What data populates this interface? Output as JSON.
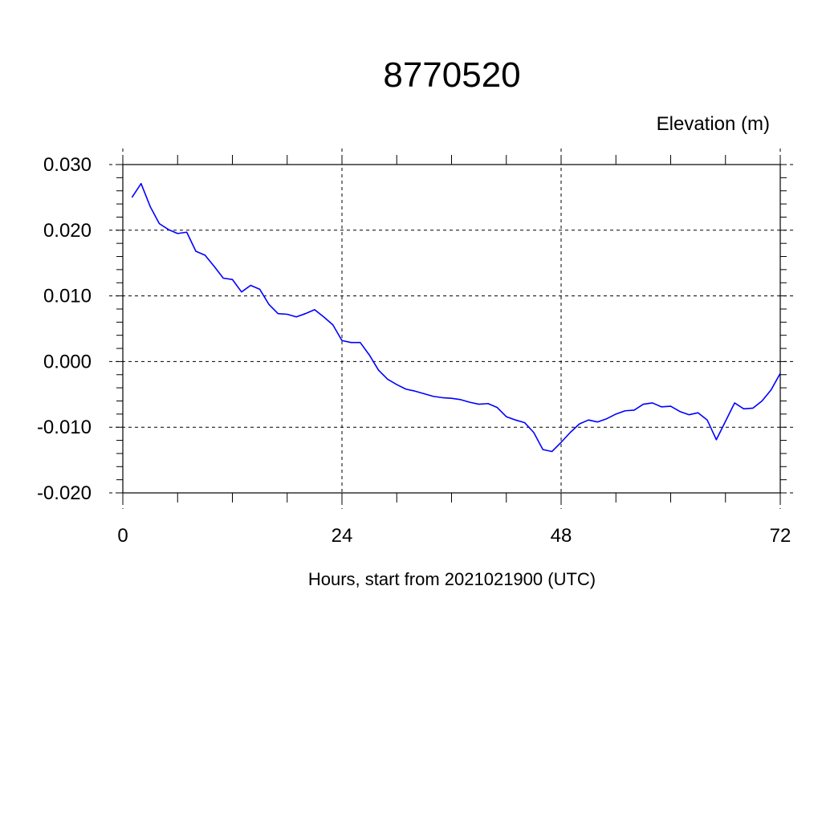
{
  "chart_data": {
    "type": "line",
    "title": "8770520",
    "units_label": "Elevation (m)",
    "xlabel": "Hours, start from 2021021900 (UTC)",
    "ylabel": "",
    "xlim": [
      0,
      72
    ],
    "ylim": [
      -0.02,
      0.03
    ],
    "x_ticks": [
      0,
      24,
      48,
      72
    ],
    "x_tick_labels": [
      "0",
      "24",
      "48",
      "72"
    ],
    "y_ticks": [
      -0.02,
      -0.01,
      0.0,
      0.01,
      0.02,
      0.03
    ],
    "y_tick_labels": [
      "-0.020",
      "-0.010",
      "0.000",
      "0.010",
      "0.020",
      "0.030"
    ],
    "grid": true,
    "grid_style": "dashed",
    "series": [
      {
        "color": "#0000ff",
        "x": [
          1,
          2,
          3,
          4,
          5,
          6,
          7,
          8,
          9,
          10,
          11,
          12,
          13,
          14,
          15,
          16,
          17,
          18,
          19,
          20,
          21,
          22,
          23,
          24,
          25,
          26,
          27,
          28,
          29,
          30,
          31,
          32,
          33,
          34,
          35,
          36,
          37,
          38,
          39,
          40,
          41,
          42,
          43,
          44,
          45,
          46,
          47,
          48,
          49,
          50,
          51,
          52,
          53,
          54,
          55,
          56,
          57,
          58,
          59,
          60,
          61,
          62,
          63,
          64,
          65,
          66,
          67,
          68,
          69,
          70,
          71,
          72
        ],
        "y": [
          0.025,
          0.0271,
          0.0236,
          0.021,
          0.0201,
          0.0195,
          0.0197,
          0.0168,
          0.0162,
          0.0145,
          0.0127,
          0.0125,
          0.0106,
          0.0116,
          0.011,
          0.0087,
          0.0073,
          0.0072,
          0.0068,
          0.0073,
          0.0079,
          0.0068,
          0.0056,
          0.0032,
          0.0029,
          0.0029,
          0.001,
          -0.0013,
          -0.0027,
          -0.0035,
          -0.0042,
          -0.0045,
          -0.0049,
          -0.0053,
          -0.0055,
          -0.0056,
          -0.0058,
          -0.0062,
          -0.0065,
          -0.0064,
          -0.007,
          -0.0084,
          -0.0089,
          -0.0093,
          -0.0108,
          -0.0134,
          -0.0137,
          -0.0123,
          -0.0108,
          -0.0095,
          -0.0089,
          -0.0092,
          -0.0087,
          -0.008,
          -0.0075,
          -0.0074,
          -0.0065,
          -0.0063,
          -0.0069,
          -0.0068,
          -0.0076,
          -0.0081,
          -0.0078,
          -0.0089,
          -0.0119,
          -0.0091,
          -0.0063,
          -0.0072,
          -0.0071,
          -0.006,
          -0.0043,
          -0.0018
        ]
      }
    ]
  }
}
